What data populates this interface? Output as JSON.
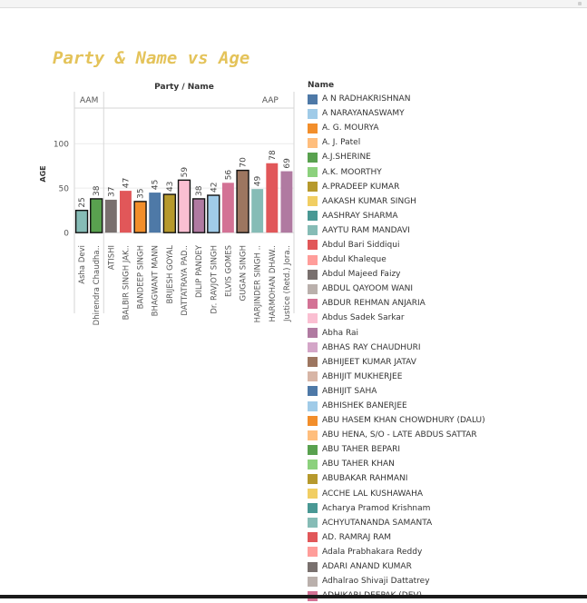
{
  "chart_data": {
    "type": "bar",
    "title": "Party & Name vs Age",
    "header": "Party / Name",
    "ylabel": "AGE",
    "yticks": [
      0,
      50,
      100
    ],
    "ylim": [
      -8,
      140
    ],
    "groups": [
      {
        "label": "AAM",
        "start": 0,
        "end": 1
      },
      {
        "label": "AAP",
        "start": 2,
        "end": 13
      }
    ],
    "categories": [
      "Asha Devi",
      "Dhirendra Chaudha..",
      "ATISHI",
      "BALBIR SINGH JAK..",
      "BANDEEP SINGH",
      "BHAGWANT MANN",
      "BRIJESH GOYAL",
      "DATTATRAYA PAD..",
      "DILIP PANDEY",
      "Dr. RAVJOT SINGH",
      "ELVIS GOMES",
      "GUGAN SINGH",
      "HARJINDER SINGH ..",
      "HARMOHAN DHAW..",
      "Justice (Retd.) Jora.."
    ],
    "values": [
      25,
      38,
      37,
      47,
      35,
      45,
      43,
      59,
      38,
      42,
      56,
      70,
      49,
      78,
      69
    ],
    "bar_colors": [
      "#86bcb6",
      "#59a14f",
      "#79706e",
      "#e15759",
      "#f28e2b",
      "#4e79a7",
      "#b6992d",
      "#fabfd2",
      "#b07aa1",
      "#a0cbe8",
      "#d37295",
      "#9d7660",
      "#86bcb6",
      "#e15759",
      "#b07aa1"
    ],
    "highlighted": [
      true,
      true,
      false,
      false,
      true,
      false,
      true,
      true,
      true,
      true,
      false,
      true,
      false,
      false,
      false
    ],
    "legend": {
      "title": "Name",
      "items": [
        {
          "label": "A N RADHAKRISHNAN",
          "color": "#4e79a7"
        },
        {
          "label": "A NARAYANASWAMY",
          "color": "#a0cbe8"
        },
        {
          "label": "A. G. MOURYA",
          "color": "#f28e2b"
        },
        {
          "label": "A. J. Patel",
          "color": "#ffbe7d"
        },
        {
          "label": "A.J.SHERINE",
          "color": "#59a14f"
        },
        {
          "label": "A.K. MOORTHY",
          "color": "#8cd17d"
        },
        {
          "label": "A.PRADEEP KUMAR",
          "color": "#b6992d"
        },
        {
          "label": "AAKASH KUMAR SINGH",
          "color": "#f1ce63"
        },
        {
          "label": "AASHRAY SHARMA",
          "color": "#499894"
        },
        {
          "label": "AAYTU RAM MANDAVI",
          "color": "#86bcb6"
        },
        {
          "label": "Abdul Bari Siddiqui",
          "color": "#e15759"
        },
        {
          "label": "Abdul Khaleque",
          "color": "#ff9d9a"
        },
        {
          "label": "Abdul Majeed Faizy",
          "color": "#79706e"
        },
        {
          "label": "ABDUL QAYOOM WANI",
          "color": "#bab0ac"
        },
        {
          "label": "ABDUR REHMAN ANJARIA",
          "color": "#d37295"
        },
        {
          "label": "Abdus Sadek Sarkar",
          "color": "#fabfd2"
        },
        {
          "label": "Abha Rai",
          "color": "#b07aa1"
        },
        {
          "label": "ABHAS RAY CHAUDHURI",
          "color": "#d4a6c8"
        },
        {
          "label": "ABHIJEET KUMAR JATAV",
          "color": "#9d7660"
        },
        {
          "label": "ABHIJIT MUKHERJEE",
          "color": "#d7b5a6"
        },
        {
          "label": "ABHIJIT SAHA",
          "color": "#4e79a7"
        },
        {
          "label": "ABHISHEK BANERJEE",
          "color": "#a0cbe8"
        },
        {
          "label": "ABU HASEM KHAN CHOWDHURY (DALU)",
          "color": "#f28e2b"
        },
        {
          "label": "ABU HENA, S/O - LATE ABDUS SATTAR",
          "color": "#ffbe7d"
        },
        {
          "label": "ABU TAHER BEPARI",
          "color": "#59a14f"
        },
        {
          "label": "ABU TAHER KHAN",
          "color": "#8cd17d"
        },
        {
          "label": "ABUBAKAR RAHMANI",
          "color": "#b6992d"
        },
        {
          "label": "ACCHE LAL KUSHAWAHA",
          "color": "#f1ce63"
        },
        {
          "label": "Acharya Pramod Krishnam",
          "color": "#499894"
        },
        {
          "label": "ACHYUTANANDA SAMANTA",
          "color": "#86bcb6"
        },
        {
          "label": "AD. RAMRAJ RAM",
          "color": "#e15759"
        },
        {
          "label": "Adala Prabhakara Reddy",
          "color": "#ff9d9a"
        },
        {
          "label": "ADARI ANAND KUMAR",
          "color": "#79706e"
        },
        {
          "label": "Adhalrao Shivaji Dattatrey",
          "color": "#bab0ac"
        },
        {
          "label": "ADHIKARI DEEPAK (DEV)",
          "color": "#d37295"
        }
      ]
    }
  }
}
